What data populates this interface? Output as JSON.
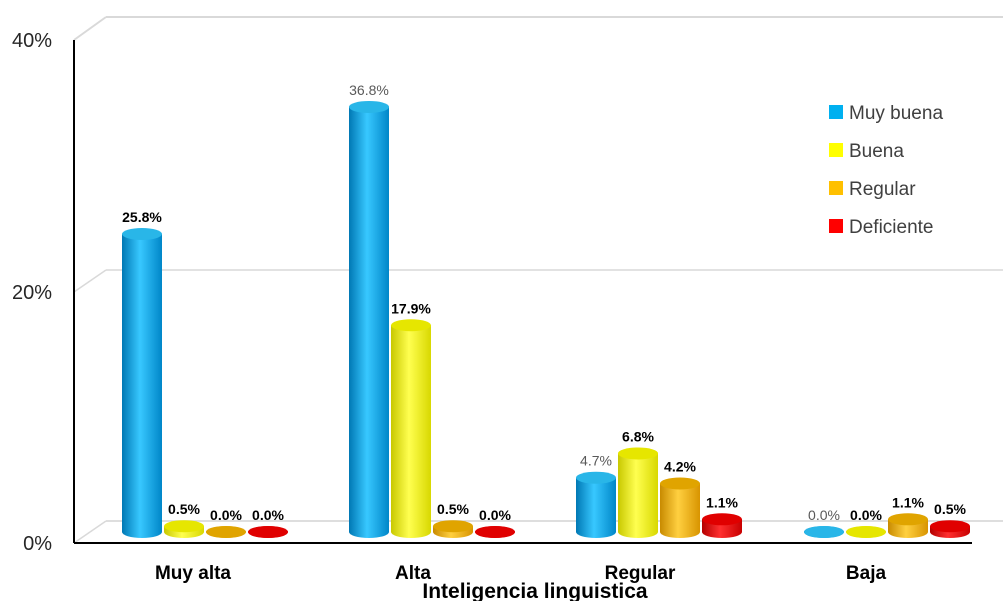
{
  "chart_data": {
    "type": "bar",
    "title": "",
    "xlabel": "Inteligencia linguistica",
    "ylabel": "",
    "ylim": [
      0,
      40
    ],
    "yticks": [
      "0%",
      "20%",
      "40%"
    ],
    "grid": true,
    "legend_position": "right",
    "categories": [
      "Muy alta",
      "Alta",
      "Regular",
      "Baja"
    ],
    "series": [
      {
        "name": "Muy buena",
        "color": "#00B0F0",
        "values": [
          25.8,
          36.8,
          4.7,
          0.0
        ],
        "labels": [
          "25.8%",
          "36.8%",
          "4.7%",
          "0.0%"
        ]
      },
      {
        "name": "Buena",
        "color": "#FFFF00",
        "values": [
          0.5,
          17.9,
          6.8,
          0.0
        ],
        "labels": [
          "0.5%",
          "17.9%",
          "6.8%",
          "0.0%"
        ]
      },
      {
        "name": "Regular",
        "color": "#FFC000",
        "values": [
          0.0,
          0.5,
          4.2,
          1.1
        ],
        "labels": [
          "0.0%",
          "0.5%",
          "4.2%",
          "1.1%"
        ]
      },
      {
        "name": "Deficiente",
        "color": "#FF0000",
        "values": [
          0.0,
          0.0,
          1.1,
          0.5
        ],
        "labels": [
          "0.0%",
          "0.0%",
          "1.1%",
          "0.5%"
        ]
      }
    ]
  }
}
